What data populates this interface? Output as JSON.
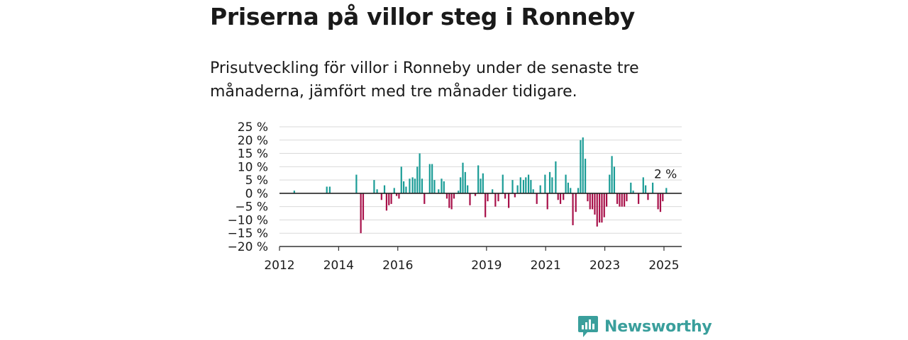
{
  "header": {
    "title": "Priserna på villor steg i Ronneby",
    "subtitle": "Prisutveckling för villor i Ronneby under de senaste tre månaderna, jämfört med tre månader tidigare."
  },
  "brand": {
    "name": "Newsworthy",
    "icon": "newsworthy-logo-icon",
    "color": "#3a9f9c"
  },
  "colors": {
    "positive": "#1a9c96",
    "negative": "#a8114a",
    "grid": "#d9d9d9",
    "axis": "#333333"
  },
  "chart_data": {
    "type": "bar",
    "ylabel": "",
    "xlabel": "",
    "ylim": [
      -20,
      25
    ],
    "yticks": [
      25,
      20,
      15,
      10,
      5,
      0,
      -5,
      -10,
      -15,
      -20
    ],
    "ytick_labels": [
      "25 %",
      "20 %",
      "15 %",
      "10 %",
      "5 %",
      "0 %",
      "−5 %",
      "−10 %",
      "−15 %",
      "−20 %"
    ],
    "xlim": [
      2012.0,
      2025.6
    ],
    "xticks": [
      2012,
      2014,
      2016,
      2019,
      2021,
      2023,
      2025
    ],
    "xtick_labels": [
      "2012",
      "2014",
      "2016",
      "2019",
      "2021",
      "2023",
      "2025"
    ],
    "grid": true,
    "last_value_label": "2 %",
    "series": [
      {
        "values": [
          {
            "x": 2012.5,
            "y": 1.0
          },
          {
            "x": 2013.6,
            "y": 2.5
          },
          {
            "x": 2013.7,
            "y": 2.5
          },
          {
            "x": 2014.6,
            "y": 7.0
          },
          {
            "x": 2014.75,
            "y": -15.0
          },
          {
            "x": 2014.83,
            "y": -10.0
          },
          {
            "x": 2015.2,
            "y": 5.0
          },
          {
            "x": 2015.3,
            "y": 1.5
          },
          {
            "x": 2015.45,
            "y": -2.5
          },
          {
            "x": 2015.55,
            "y": 3.0
          },
          {
            "x": 2015.62,
            "y": -6.5
          },
          {
            "x": 2015.7,
            "y": -4.5
          },
          {
            "x": 2015.78,
            "y": -4.0
          },
          {
            "x": 2015.88,
            "y": 2.0
          },
          {
            "x": 2015.96,
            "y": -1.0
          },
          {
            "x": 2016.04,
            "y": -2.0
          },
          {
            "x": 2016.12,
            "y": 10.0
          },
          {
            "x": 2016.2,
            "y": 4.5
          },
          {
            "x": 2016.28,
            "y": 2.5
          },
          {
            "x": 2016.4,
            "y": 5.5
          },
          {
            "x": 2016.5,
            "y": 6.0
          },
          {
            "x": 2016.58,
            "y": 5.5
          },
          {
            "x": 2016.66,
            "y": 10.0
          },
          {
            "x": 2016.74,
            "y": 15.0
          },
          {
            "x": 2016.82,
            "y": 5.5
          },
          {
            "x": 2016.9,
            "y": -4.0
          },
          {
            "x": 2017.08,
            "y": 11.0
          },
          {
            "x": 2017.16,
            "y": 11.0
          },
          {
            "x": 2017.24,
            "y": 5.0
          },
          {
            "x": 2017.38,
            "y": 1.5
          },
          {
            "x": 2017.48,
            "y": 5.5
          },
          {
            "x": 2017.56,
            "y": 4.5
          },
          {
            "x": 2017.66,
            "y": -2.0
          },
          {
            "x": 2017.74,
            "y": -5.5
          },
          {
            "x": 2017.82,
            "y": -6.0
          },
          {
            "x": 2017.9,
            "y": -2.0
          },
          {
            "x": 2018.05,
            "y": 1.0
          },
          {
            "x": 2018.12,
            "y": 6.0
          },
          {
            "x": 2018.2,
            "y": 11.5
          },
          {
            "x": 2018.28,
            "y": 8.0
          },
          {
            "x": 2018.36,
            "y": 3.0
          },
          {
            "x": 2018.44,
            "y": -4.5
          },
          {
            "x": 2018.62,
            "y": -1.0
          },
          {
            "x": 2018.72,
            "y": 10.5
          },
          {
            "x": 2018.8,
            "y": 5.5
          },
          {
            "x": 2018.88,
            "y": 7.5
          },
          {
            "x": 2018.96,
            "y": -9.0
          },
          {
            "x": 2019.04,
            "y": -3.0
          },
          {
            "x": 2019.2,
            "y": 1.5
          },
          {
            "x": 2019.3,
            "y": -5.0
          },
          {
            "x": 2019.4,
            "y": -3.0
          },
          {
            "x": 2019.55,
            "y": 7.0
          },
          {
            "x": 2019.63,
            "y": -2.0
          },
          {
            "x": 2019.75,
            "y": -5.5
          },
          {
            "x": 2019.88,
            "y": 5.0
          },
          {
            "x": 2019.96,
            "y": -1.5
          },
          {
            "x": 2020.05,
            "y": 3.0
          },
          {
            "x": 2020.15,
            "y": 6.0
          },
          {
            "x": 2020.25,
            "y": 5.0
          },
          {
            "x": 2020.33,
            "y": 6.0
          },
          {
            "x": 2020.42,
            "y": 7.0
          },
          {
            "x": 2020.5,
            "y": 5.0
          },
          {
            "x": 2020.58,
            "y": 1.5
          },
          {
            "x": 2020.7,
            "y": -4.0
          },
          {
            "x": 2020.82,
            "y": 3.0
          },
          {
            "x": 2020.98,
            "y": 7.0
          },
          {
            "x": 2021.06,
            "y": -6.0
          },
          {
            "x": 2021.14,
            "y": 8.0
          },
          {
            "x": 2021.22,
            "y": 6.0
          },
          {
            "x": 2021.34,
            "y": 12.0
          },
          {
            "x": 2021.42,
            "y": -2.5
          },
          {
            "x": 2021.5,
            "y": -4.0
          },
          {
            "x": 2021.6,
            "y": -2.5
          },
          {
            "x": 2021.68,
            "y": 7.0
          },
          {
            "x": 2021.76,
            "y": 4.0
          },
          {
            "x": 2021.84,
            "y": 2.0
          },
          {
            "x": 2021.92,
            "y": -12.0
          },
          {
            "x": 2022.02,
            "y": -7.0
          },
          {
            "x": 2022.1,
            "y": 2.0
          },
          {
            "x": 2022.18,
            "y": 20.0
          },
          {
            "x": 2022.26,
            "y": 21.0
          },
          {
            "x": 2022.34,
            "y": 13.0
          },
          {
            "x": 2022.42,
            "y": -3.0
          },
          {
            "x": 2022.5,
            "y": -6.0
          },
          {
            "x": 2022.58,
            "y": -6.0
          },
          {
            "x": 2022.66,
            "y": -8.0
          },
          {
            "x": 2022.74,
            "y": -12.5
          },
          {
            "x": 2022.82,
            "y": -11.0
          },
          {
            "x": 2022.9,
            "y": -11.0
          },
          {
            "x": 2022.98,
            "y": -9.0
          },
          {
            "x": 2023.06,
            "y": -5.0
          },
          {
            "x": 2023.16,
            "y": 7.0
          },
          {
            "x": 2023.24,
            "y": 14.0
          },
          {
            "x": 2023.32,
            "y": 10.0
          },
          {
            "x": 2023.42,
            "y": -4.0
          },
          {
            "x": 2023.5,
            "y": -5.0
          },
          {
            "x": 2023.58,
            "y": -5.0
          },
          {
            "x": 2023.66,
            "y": -5.0
          },
          {
            "x": 2023.74,
            "y": -3.0
          },
          {
            "x": 2023.88,
            "y": 4.0
          },
          {
            "x": 2023.96,
            "y": 1.0
          },
          {
            "x": 2024.14,
            "y": -4.0
          },
          {
            "x": 2024.3,
            "y": 6.0
          },
          {
            "x": 2024.38,
            "y": 3.0
          },
          {
            "x": 2024.46,
            "y": -2.5
          },
          {
            "x": 2024.62,
            "y": 4.0
          },
          {
            "x": 2024.8,
            "y": -6.0
          },
          {
            "x": 2024.88,
            "y": -7.0
          },
          {
            "x": 2024.96,
            "y": -3.0
          },
          {
            "x": 2025.08,
            "y": 2.0
          }
        ]
      }
    ]
  }
}
